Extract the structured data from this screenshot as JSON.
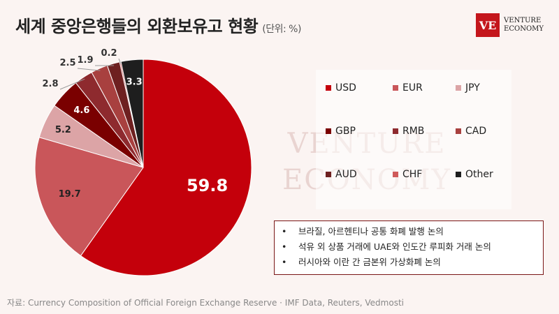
{
  "header": {
    "title": "세계 중앙은행들의 외환보유고 현황",
    "unit": "(단위: %)"
  },
  "logo": {
    "mark": "VE",
    "line1": "VENTURE",
    "line2": "ECONOMY"
  },
  "watermark": {
    "line1": "VENTURE",
    "line2": "ECONOMY"
  },
  "chart_data": {
    "type": "pie",
    "title": "세계 중앙은행들의 외환보유고 현황",
    "unit": "%",
    "legend_position": "right",
    "series": [
      {
        "name": "USD",
        "value": 59.8,
        "color": "#c4000b",
        "label_color": "#ffffff"
      },
      {
        "name": "EUR",
        "value": 19.7,
        "color": "#c9565a",
        "label_color": "#222222"
      },
      {
        "name": "JPY",
        "value": 5.2,
        "color": "#dca4a6",
        "label_color": "#222222"
      },
      {
        "name": "GBP",
        "value": 4.6,
        "color": "#7a0000",
        "label_color": "#ffffff"
      },
      {
        "name": "RMB",
        "value": 2.8,
        "color": "#8e2a2e",
        "label_color": "#222222"
      },
      {
        "name": "CAD",
        "value": 2.5,
        "color": "#a8403f",
        "label_color": "#222222"
      },
      {
        "name": "AUD",
        "value": 1.9,
        "color": "#6e2020",
        "label_color": "#222222"
      },
      {
        "name": "CHF",
        "value": 0.2,
        "color": "#cf5a5a",
        "label_color": "#222222"
      },
      {
        "name": "Other",
        "value": 3.3,
        "color": "#1e1e1e",
        "label_color": "#ffffff"
      }
    ]
  },
  "notes": [
    "브라질, 아르헨티나 공통 화폐 발행 논의",
    "석유 외 상품 거래에 UAE와 인도간 루피화 거래 논의",
    "러시아와 이란 간 금본위 가상화폐 논의"
  ],
  "source": "자료: Currency Composition of Official Foreign Exchange Reserve · IMF Data, Reuters, Vedmosti"
}
